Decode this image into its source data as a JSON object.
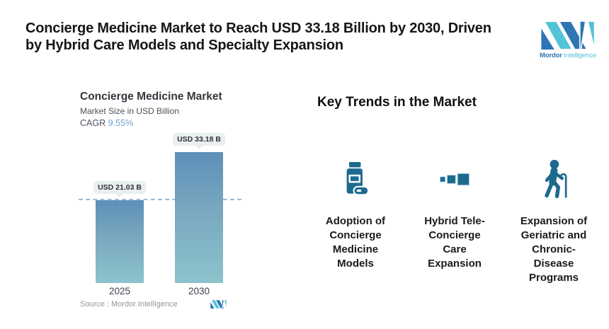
{
  "header": {
    "title": "Concierge Medicine Market to Reach USD 33.18 Billion by 2030, Driven\nby Hybrid Care Models and Specialty Expansion",
    "logo": {
      "bold": "Mordor",
      "light": "Intelligence"
    }
  },
  "chart": {
    "title": "Concierge Medicine Market",
    "subtitle": "Market Size in USD Billion",
    "cagr_label": "CAGR",
    "cagr_value": "9.55%",
    "source": "Source :  Mordor Intelligence"
  },
  "chart_data": {
    "type": "bar",
    "title": "Concierge Medicine Market",
    "ylabel": "Market Size in USD Billion",
    "categories": [
      "2025",
      "2030"
    ],
    "values": [
      21.03,
      33.18
    ],
    "value_labels": [
      "USD 21.03 B",
      "USD 33.18 B"
    ],
    "cagr_percent": 9.55,
    "reference_line": {
      "style": "dashed",
      "value": 21.03
    },
    "legend": "none",
    "grid": "off"
  },
  "trends": {
    "heading": "Key Trends in the Market",
    "items": [
      {
        "icon": "pill-bottle-icon",
        "label": "Adoption of\nConcierge\nMedicine\nModels"
      },
      {
        "icon": "growing-squares-icon",
        "label": "Hybrid Tele-\nConcierge\nCare\nExpansion"
      },
      {
        "icon": "elderly-person-with-cane-icon",
        "label": "Expansion of\nGeriatric and\nChronic-\nDisease\nPrograms"
      }
    ]
  },
  "colors": {
    "brand_blue": "#2E75B5",
    "brand_teal": "#54C3D8",
    "icon_blue": "#1D6A8F",
    "bar_gradient_top": "#5E8FB8",
    "bar_gradient_bottom": "#8CC3CC",
    "badge_bg": "#E9EFF1",
    "dashed_line": "#9BBAD6",
    "cagr_value_color": "#6FA3D8"
  }
}
